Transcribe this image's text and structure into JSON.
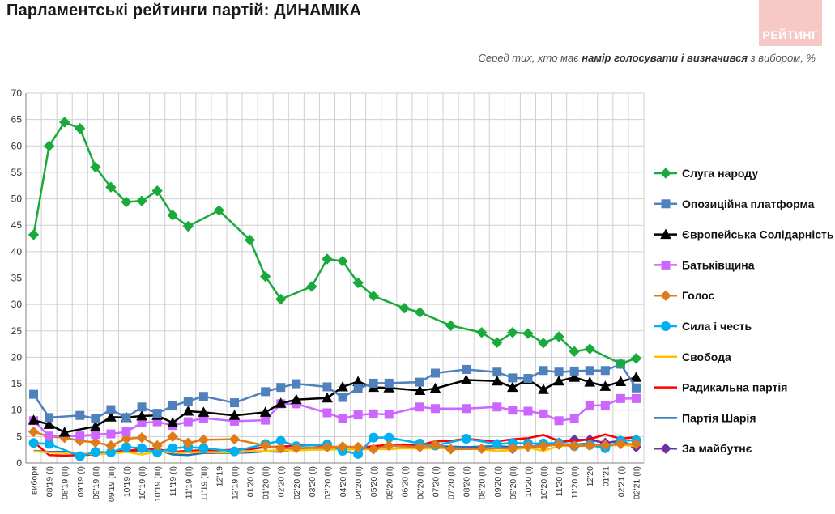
{
  "title": "Парламентські рейтинги партій: ДИНАМІКА",
  "logo_text": "РЕЙТИНГ",
  "subtitle": {
    "pre": "Серед тих, хто має ",
    "bold": "намір голосувати і визначився",
    "post": " з вибором, %"
  },
  "chart_data": {
    "type": "line",
    "title": "Парламентські рейтинги партій: ДИНАМІКА",
    "ylim": [
      0,
      70
    ],
    "yticks": [
      0,
      5,
      10,
      15,
      20,
      25,
      30,
      35,
      40,
      45,
      50,
      55,
      60,
      65,
      70
    ],
    "grid": true,
    "legend_position": "right",
    "x": [
      "вибори",
      "08'19 (I)",
      "08'19 (II)",
      "09'19 (I)",
      "09'19 (II)",
      "09'19 (III)",
      "10'19 (I)",
      "10'19 (II)",
      "10'19 (III)",
      "11'19 (I)",
      "11'19 (II)",
      "11'19 (III)",
      "12'19",
      "12'19 (II)",
      "01'20 (I)",
      "01'20 (II)",
      "02'20 (I)",
      "02'20 (II)",
      "03'20 (I)",
      "03'20 (II)",
      "04'20 (I)",
      "04'20 (II)",
      "05'20 (I)",
      "05'20 (II)",
      "06'20 (I)",
      "06'20 (II)",
      "07'20 (I)",
      "07'20 (II)",
      "08'20 (I)",
      "08'20 (II)",
      "09'20 (I)",
      "09'20 (II)",
      "10'20 (I)",
      "10'20 (II)",
      "11'20 (I)",
      "11'20 (II)",
      "12'20",
      "01'21",
      "02'21 (I)",
      "02'21 (II)"
    ],
    "series": [
      {
        "name": "Слуга народу",
        "color": "#1aaa3c",
        "marker": "diamond",
        "values": [
          43.2,
          60,
          64.5,
          63.3,
          56,
          52.2,
          49.4,
          49.6,
          51.5,
          46.9,
          44.8,
          null,
          47.8,
          null,
          42.2,
          35.3,
          31,
          null,
          33.4,
          38.6,
          38.2,
          34.1,
          31.6,
          null,
          29.3,
          28.5,
          null,
          26,
          null,
          24.7,
          22.8,
          24.7,
          24.5,
          22.7,
          23.9,
          21.1,
          21.6,
          null,
          18.8,
          19.8
        ]
      },
      {
        "name": "Опозиційна платформа",
        "color": "#4f81bd",
        "marker": "square",
        "values": [
          13,
          8.6,
          null,
          9,
          8.4,
          10.1,
          8.6,
          10.6,
          9.4,
          10.8,
          11.7,
          12.6,
          null,
          11.4,
          null,
          13.5,
          14.3,
          15,
          null,
          14.4,
          12.4,
          14.1,
          15.1,
          15.1,
          null,
          15.3,
          17,
          null,
          17.7,
          null,
          17.2,
          16.1,
          16,
          17.5,
          17.2,
          17.4,
          17.5,
          17.5,
          18.7,
          14.2
        ]
      },
      {
        "name": "Європейська Солідарність",
        "color": "#000000",
        "marker": "triangle",
        "values": [
          8.1,
          7.3,
          5.8,
          null,
          6.9,
          8.7,
          8.6,
          8.9,
          9,
          7.6,
          9.8,
          9.6,
          null,
          9,
          null,
          9.6,
          11.3,
          12,
          null,
          12.3,
          14.4,
          15.4,
          14.3,
          14.2,
          null,
          13.7,
          14.1,
          null,
          15.7,
          null,
          15.5,
          14.3,
          15.8,
          13.9,
          15.5,
          16.2,
          15.3,
          14.5,
          15.4,
          16.2
        ]
      },
      {
        "name": "Батьківщина",
        "color": "#cc66ff",
        "marker": "square",
        "values": [
          8,
          5.1,
          null,
          5.1,
          5.4,
          5.5,
          5.9,
          7.6,
          7.8,
          7.1,
          7.8,
          8.5,
          null,
          7.9,
          null,
          8.1,
          11.2,
          11.2,
          null,
          9.5,
          8.4,
          9.1,
          9.3,
          9.2,
          null,
          10.6,
          10.3,
          null,
          10.3,
          null,
          10.6,
          10,
          9.8,
          9.3,
          8,
          8.4,
          10.9,
          10.9,
          12.2,
          12.2
        ]
      },
      {
        "name": "Голос",
        "color": "#e07b1a",
        "marker": "diamond",
        "values": [
          5.9,
          5,
          4.8,
          4.2,
          3.9,
          3.3,
          4.6,
          4.8,
          3.3,
          5,
          3.8,
          4.4,
          null,
          4.5,
          null,
          3.3,
          2.8,
          2.8,
          null,
          3,
          3.1,
          3,
          2.6,
          3.3,
          null,
          3,
          3.4,
          2.6,
          null,
          2.7,
          null,
          2.8,
          3.1,
          3.2,
          3.5,
          3.2,
          3.3,
          3.4,
          3.6,
          3.6
        ]
      },
      {
        "name": "Сила і честь",
        "color": "#00b0f0",
        "marker": "circle",
        "values": [
          3.8,
          3.6,
          null,
          1.3,
          2.1,
          2,
          3,
          2.8,
          2,
          2.8,
          3,
          2.8,
          null,
          2.2,
          null,
          3.6,
          4.2,
          3.2,
          null,
          3.5,
          2.3,
          1.7,
          4.8,
          4.8,
          null,
          3.7,
          3.3,
          null,
          4.6,
          null,
          3.6,
          3.8,
          3.7,
          3.7,
          3.8,
          3.2,
          3.4,
          2.8,
          4.2,
          4.3
        ]
      },
      {
        "name": "Свобода",
        "color": "#ffc000",
        "marker": "none",
        "values": [
          2.2,
          2,
          1.9,
          1.8,
          1.6,
          1.8,
          2.1,
          1.6,
          2.2,
          2,
          2,
          2.1,
          2,
          2,
          2.2,
          2.3,
          2.4,
          2.4,
          2.5,
          2.5,
          2.6,
          2.5,
          2.7,
          2.6,
          2.8,
          2.7,
          2.8,
          2.8,
          2.7,
          2.6,
          2.2,
          2.5,
          2.9,
          2.3,
          3.2,
          3.3,
          3.6,
          3.3,
          3.4,
          3.2
        ]
      },
      {
        "name": "Радикальна партія",
        "color": "#ff0000",
        "marker": "none",
        "values": [
          4,
          1.5,
          1.4,
          1.5,
          1.6,
          2.2,
          2.3,
          2.6,
          2.6,
          2.1,
          2.3,
          2.4,
          2.4,
          2.5,
          2.6,
          3,
          3.1,
          3.3,
          3.4,
          3.2,
          2.8,
          2.8,
          3.2,
          3.4,
          3.5,
          3.4,
          4.1,
          4.2,
          4.6,
          4.3,
          4.1,
          4.5,
          4.7,
          5.3,
          4.2,
          4.1,
          4.5,
          5.4,
          4.6,
          4.9
        ]
      },
      {
        "name": "Партія Шарія",
        "color": "#1f6fb5",
        "marker": "none",
        "values": [
          2.3,
          2.1,
          2.1,
          1.8,
          1.6,
          1.9,
          2.1,
          2.3,
          2.5,
          1.6,
          1.5,
          1.9,
          1.9,
          1.9,
          2,
          2.2,
          2.1,
          2.7,
          2.8,
          2.7,
          2.8,
          2.8,
          3.1,
          3.3,
          3.1,
          3.1,
          3.2,
          3.1,
          3,
          3.1,
          3.2,
          3,
          3,
          3.2,
          3.6,
          3.5,
          3.7,
          3.2,
          3.6,
          3.5
        ]
      },
      {
        "name": "За майбутнє",
        "color": "#7030a0",
        "marker": "diamond",
        "values": [
          null,
          null,
          null,
          null,
          null,
          null,
          null,
          null,
          null,
          null,
          null,
          null,
          null,
          null,
          null,
          null,
          null,
          null,
          null,
          null,
          null,
          null,
          null,
          null,
          null,
          null,
          null,
          null,
          null,
          null,
          null,
          2.7,
          null,
          null,
          3.8,
          4.4,
          4.4,
          3.8,
          4.2,
          3
        ]
      }
    ]
  }
}
